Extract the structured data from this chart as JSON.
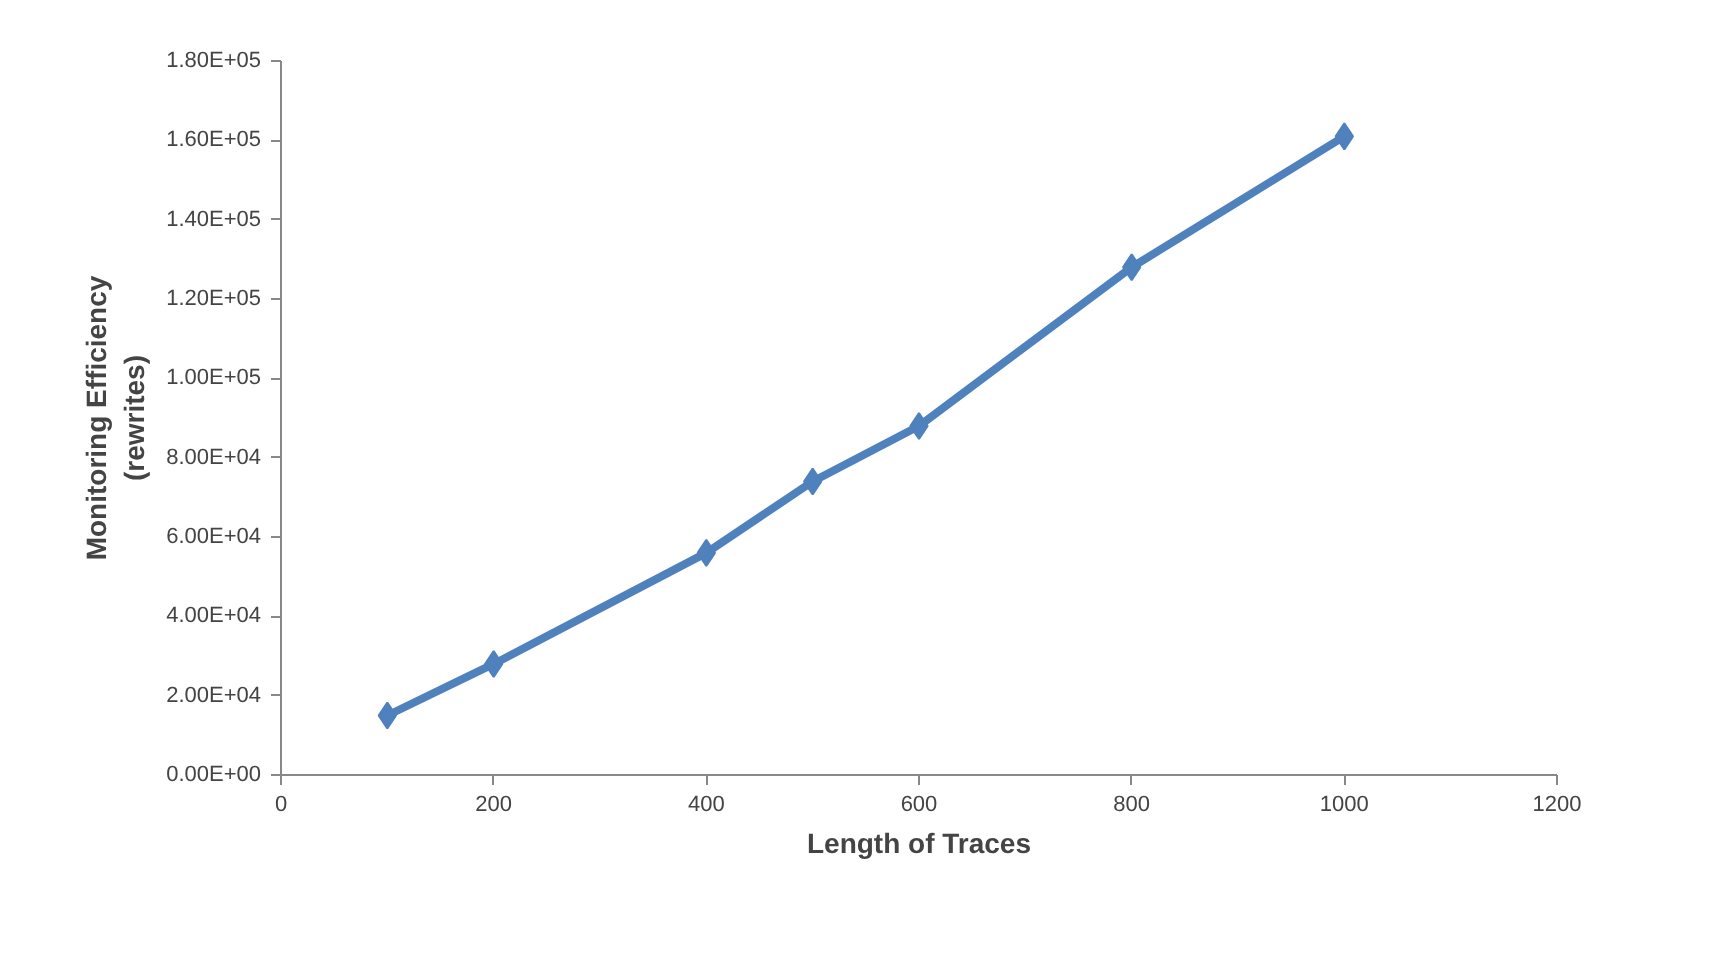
{
  "chart_data": {
    "type": "line",
    "xlabel": "Length of Traces",
    "ylabel": "Monitoring Efficiency\n(rewrites)",
    "x": [
      100,
      200,
      400,
      500,
      600,
      800,
      1000
    ],
    "series": [
      {
        "color": "#4f81bd",
        "values": [
          15000,
          28000,
          56000,
          74000,
          88000,
          128000,
          161000
        ]
      }
    ],
    "xlim": [
      0,
      1200
    ],
    "xticks": [
      0,
      200,
      400,
      600,
      800,
      1000,
      1200
    ],
    "ylim": [
      0,
      180000
    ],
    "yticks": [
      {
        "value": 0,
        "label": "0.00E+00"
      },
      {
        "value": 20000,
        "label": "2.00E+04"
      },
      {
        "value": 40000,
        "label": "4.00E+04"
      },
      {
        "value": 60000,
        "label": "6.00E+04"
      },
      {
        "value": 80000,
        "label": "8.00E+04"
      },
      {
        "value": 100000,
        "label": "1.00E+05"
      },
      {
        "value": 120000,
        "label": "1.20E+05"
      },
      {
        "value": 140000,
        "label": "1.40E+05"
      },
      {
        "value": 160000,
        "label": "1.60E+05"
      },
      {
        "value": 180000,
        "label": "1.80E+05"
      }
    ],
    "grid": false,
    "marker": "diamond",
    "line_style": "solid"
  }
}
